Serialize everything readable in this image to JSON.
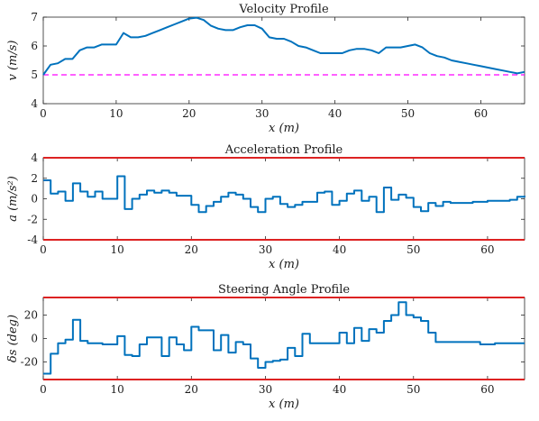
{
  "chart_data": [
    {
      "type": "line",
      "title": "Velocity Profile",
      "xlabel": "x (m)",
      "ylabel": "v (m/s)",
      "xlim": [
        0,
        66
      ],
      "ylim": [
        4,
        7
      ],
      "xticks": [
        0,
        10,
        20,
        30,
        40,
        50,
        60
      ],
      "yticks": [
        4,
        5,
        6,
        7
      ],
      "reference_line": {
        "y": 5,
        "color": "#ff00ff",
        "style": "dashed"
      },
      "series": [
        {
          "color": "#0072bd",
          "x": [
            0,
            1,
            2,
            3,
            4,
            5,
            6,
            7,
            8,
            9,
            10,
            11,
            12,
            13,
            14,
            15,
            16,
            17,
            18,
            19,
            20,
            21,
            22,
            23,
            24,
            25,
            26,
            27,
            28,
            29,
            30,
            31,
            32,
            33,
            34,
            35,
            36,
            37,
            38,
            39,
            40,
            41,
            42,
            43,
            44,
            45,
            46,
            47,
            48,
            49,
            50,
            51,
            52,
            53,
            54,
            55,
            56,
            57,
            58,
            59,
            60,
            61,
            62,
            63,
            64,
            65,
            66
          ],
          "y": [
            5.0,
            5.35,
            5.4,
            5.55,
            5.55,
            5.85,
            5.95,
            5.95,
            6.05,
            6.05,
            6.05,
            6.45,
            6.3,
            6.3,
            6.35,
            6.45,
            6.55,
            6.65,
            6.75,
            6.85,
            6.95,
            6.98,
            6.9,
            6.7,
            6.6,
            6.55,
            6.55,
            6.65,
            6.72,
            6.72,
            6.6,
            6.3,
            6.25,
            6.25,
            6.15,
            6.0,
            5.95,
            5.85,
            5.75,
            5.75,
            5.75,
            5.75,
            5.85,
            5.9,
            5.9,
            5.85,
            5.75,
            5.95,
            5.95,
            5.95,
            6.0,
            6.05,
            5.95,
            5.75,
            5.65,
            5.6,
            5.5,
            5.45,
            5.4,
            5.35,
            5.3,
            5.25,
            5.2,
            5.15,
            5.1,
            5.05,
            5.1
          ]
        }
      ]
    },
    {
      "type": "line",
      "step": true,
      "title": "Acceleration Profile",
      "xlabel": "x (m)",
      "ylabel": "a (m/s²)",
      "xlim": [
        0,
        65
      ],
      "ylim": [
        -4,
        4
      ],
      "xticks": [
        0,
        10,
        20,
        30,
        40,
        50,
        60
      ],
      "yticks": [
        -4,
        -2,
        0,
        2,
        4
      ],
      "limit_lines": {
        "values": [
          -4,
          4
        ],
        "color": "#dd2222"
      },
      "series": [
        {
          "color": "#0072bd",
          "x": [
            0,
            1,
            2,
            3,
            4,
            5,
            6,
            7,
            8,
            9,
            10,
            11,
            12,
            13,
            14,
            15,
            16,
            17,
            18,
            19,
            20,
            21,
            22,
            23,
            24,
            25,
            26,
            27,
            28,
            29,
            30,
            31,
            32,
            33,
            34,
            35,
            36,
            37,
            38,
            39,
            40,
            41,
            42,
            43,
            44,
            45,
            46,
            47,
            48,
            49,
            50,
            51,
            52,
            53,
            54,
            55,
            56,
            57,
            58,
            59,
            60,
            61,
            62,
            63,
            64,
            65
          ],
          "y": [
            1.8,
            0.5,
            0.7,
            -0.2,
            1.5,
            0.7,
            0.2,
            0.7,
            0.0,
            0.0,
            2.2,
            -1.0,
            0.0,
            0.4,
            0.8,
            0.6,
            0.8,
            0.6,
            0.3,
            0.3,
            -0.6,
            -1.3,
            -0.7,
            -0.3,
            0.2,
            0.6,
            0.4,
            0.0,
            -0.8,
            -1.3,
            0.0,
            0.2,
            -0.5,
            -0.8,
            -0.6,
            -0.3,
            -0.3,
            0.6,
            0.7,
            -0.6,
            -0.2,
            0.5,
            0.8,
            -0.2,
            0.2,
            -1.3,
            1.1,
            -0.1,
            0.4,
            0.1,
            -0.8,
            -1.2,
            -0.4,
            -0.7,
            -0.3,
            -0.4,
            -0.4,
            -0.4,
            -0.3,
            -0.3,
            -0.2,
            -0.2,
            -0.2,
            -0.1,
            0.2,
            0.3
          ]
        }
      ]
    },
    {
      "type": "line",
      "step": true,
      "title": "Steering Angle Profile",
      "xlabel": "x (m)",
      "ylabel": "δs (deg)",
      "xlim": [
        0,
        65
      ],
      "ylim": [
        -35,
        35
      ],
      "xticks": [
        0,
        10,
        20,
        30,
        40,
        50,
        60
      ],
      "yticks": [
        -20,
        0,
        20
      ],
      "limit_lines": {
        "values": [
          -35,
          35
        ],
        "color": "#dd2222"
      },
      "series": [
        {
          "color": "#0072bd",
          "x": [
            0,
            1,
            2,
            3,
            4,
            5,
            6,
            7,
            8,
            9,
            10,
            11,
            12,
            13,
            14,
            15,
            16,
            17,
            18,
            19,
            20,
            21,
            22,
            23,
            24,
            25,
            26,
            27,
            28,
            29,
            30,
            31,
            32,
            33,
            34,
            35,
            36,
            37,
            38,
            39,
            40,
            41,
            42,
            43,
            44,
            45,
            46,
            47,
            48,
            49,
            50,
            51,
            52,
            53,
            54,
            55,
            56,
            57,
            58,
            59,
            60,
            61,
            62,
            63,
            64,
            65
          ],
          "y": [
            -30,
            -13,
            -4,
            -1,
            16,
            -2,
            -4,
            -4,
            -5,
            -5,
            2,
            -14,
            -15,
            -5,
            1,
            1,
            -15,
            1,
            -5,
            -10,
            10,
            7,
            7,
            -10,
            3,
            -12,
            -3,
            -5,
            -17,
            -25,
            -20,
            -19,
            -18,
            -8,
            -15,
            4,
            -4,
            -4,
            -4,
            -4,
            5,
            -4,
            9,
            -2,
            8,
            5,
            15,
            20,
            31,
            20,
            18,
            15,
            5,
            -3,
            -3,
            -3,
            -3,
            -3,
            -3,
            -5,
            -5,
            -4,
            -4,
            -4,
            -4,
            -4
          ]
        }
      ]
    }
  ]
}
